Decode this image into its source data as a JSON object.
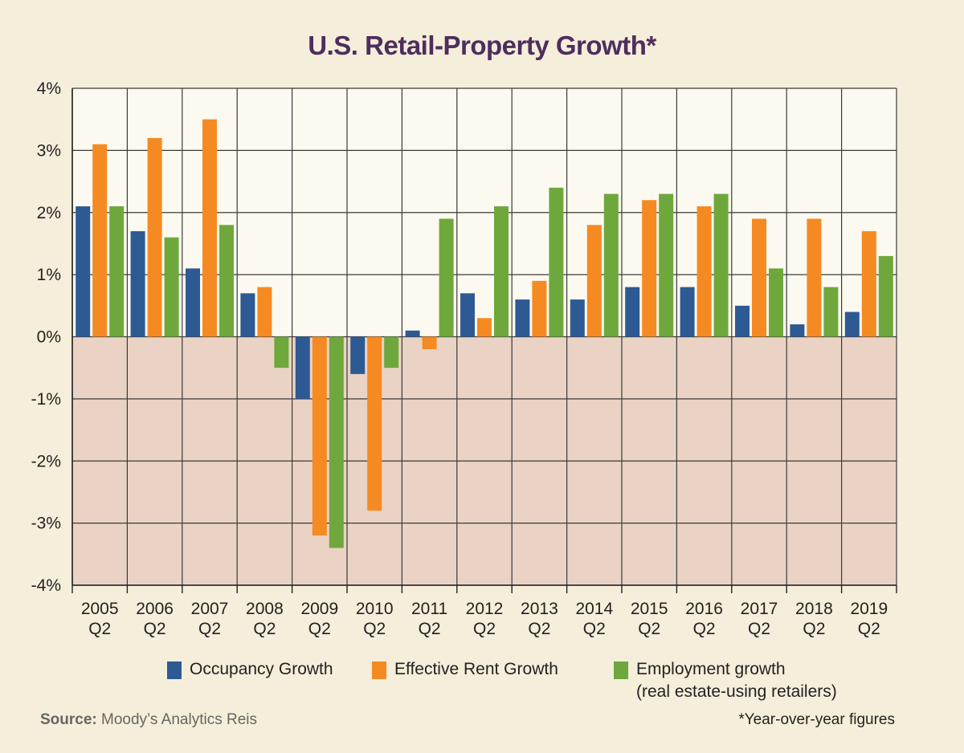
{
  "chart_data": {
    "type": "bar",
    "title": "U.S. Retail-Property Growth*",
    "xlabel": "",
    "ylabel": "",
    "categories": [
      [
        "2005",
        "Q2"
      ],
      [
        "2006",
        "Q2"
      ],
      [
        "2007",
        "Q2"
      ],
      [
        "2008",
        "Q2"
      ],
      [
        "2009",
        "Q2"
      ],
      [
        "2010",
        "Q2"
      ],
      [
        "2011",
        "Q2"
      ],
      [
        "2012",
        "Q2"
      ],
      [
        "2013",
        "Q2"
      ],
      [
        "2014",
        "Q2"
      ],
      [
        "2015",
        "Q2"
      ],
      [
        "2016",
        "Q2"
      ],
      [
        "2017",
        "Q2"
      ],
      [
        "2018",
        "Q2"
      ],
      [
        "2019",
        "Q2"
      ]
    ],
    "ylim": [
      -4,
      4
    ],
    "yticks": [
      4,
      3,
      2,
      1,
      0,
      -1,
      -2,
      -3,
      -4
    ],
    "ytick_labels": [
      "4%",
      "3%",
      "2%",
      "1%",
      "0%",
      "-1%",
      "-2%",
      "-3%",
      "-4%"
    ],
    "grid": true,
    "legend_position": "bottom",
    "series": [
      {
        "name": "Occupancy Growth",
        "color": "#2e5a94",
        "values": [
          2.1,
          1.7,
          1.1,
          0.7,
          -1.0,
          -0.6,
          0.1,
          0.7,
          0.6,
          0.6,
          0.8,
          0.8,
          0.5,
          0.2,
          0.4
        ]
      },
      {
        "name": "Effective Rent Growth",
        "color": "#f58a22",
        "values": [
          3.1,
          3.2,
          3.5,
          0.8,
          -3.2,
          -2.8,
          -0.2,
          0.3,
          0.9,
          1.8,
          2.2,
          2.1,
          1.9,
          1.9,
          1.7
        ]
      },
      {
        "name": "Employment growth",
        "name_line2": "(real estate-using retailers)",
        "color": "#6ea83c",
        "values": [
          2.1,
          1.6,
          1.8,
          -0.5,
          -3.4,
          -0.5,
          1.9,
          2.1,
          2.4,
          2.3,
          2.3,
          2.3,
          1.1,
          0.8,
          1.3
        ]
      }
    ],
    "positive_bg": "#fcfaf0",
    "negative_bg": "#ead3c4"
  },
  "source": {
    "label": "Source:",
    "text": "Moody’s Analytics Reis"
  },
  "footnote": "*Year-over-year figures"
}
